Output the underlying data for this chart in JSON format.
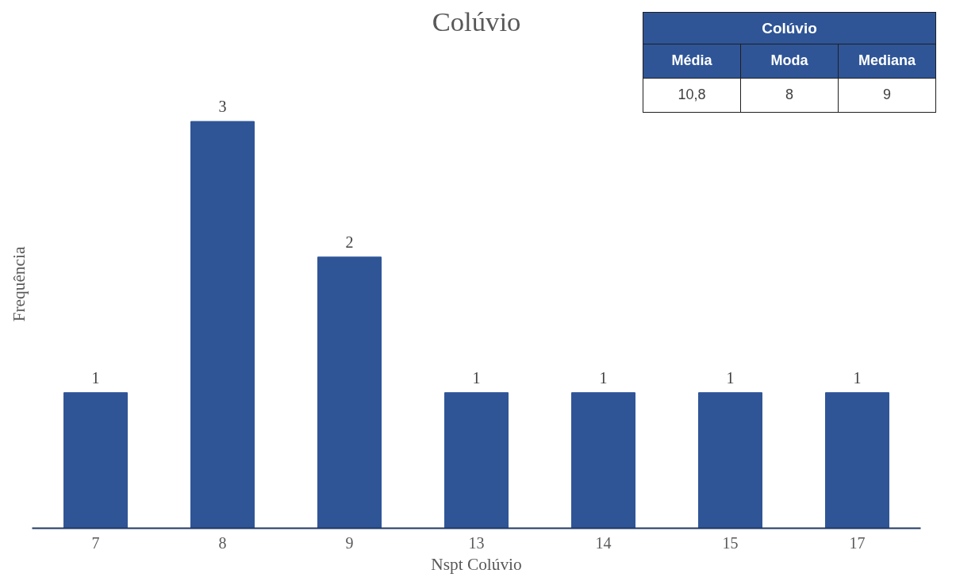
{
  "chart_data": [
    {
      "type": "bar",
      "title": "Colúvio",
      "xlabel": "Nspt Colúvio",
      "ylabel": "Frequência",
      "categories": [
        "7",
        "8",
        "9",
        "13",
        "14",
        "15",
        "17"
      ],
      "values": [
        1,
        3,
        2,
        1,
        1,
        1,
        1
      ],
      "color": "#2f5597",
      "data_labels": true,
      "tick_labels": "x",
      "grid": false
    },
    {
      "type": "other",
      "title": "Colúvio",
      "categories": [
        "Média",
        "Moda",
        "Mediana"
      ],
      "cell_labels": [
        [
          "10,8",
          "8",
          "9"
        ]
      ]
    }
  ]
}
